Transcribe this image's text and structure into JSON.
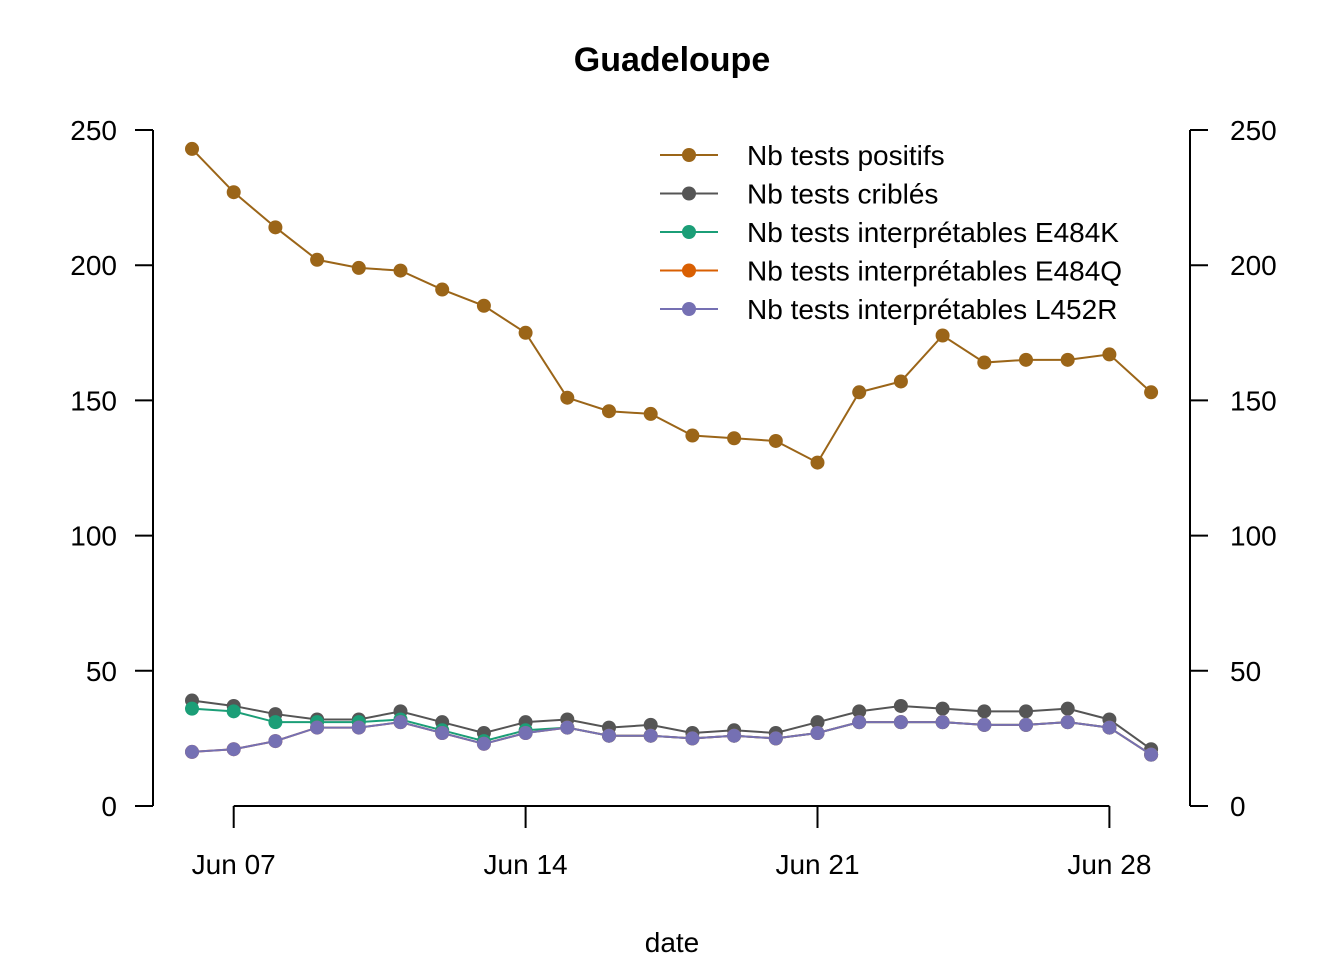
{
  "chart_data": {
    "type": "line",
    "title": "Guadeloupe",
    "xlabel": "date",
    "ylabel": "",
    "ylim": [
      0,
      250
    ],
    "yticks": [
      0,
      50,
      100,
      150,
      200,
      250
    ],
    "y2ticks": [
      0,
      50,
      100,
      150,
      200,
      250
    ],
    "x": [
      "2021-06-06",
      "2021-06-07",
      "2021-06-08",
      "2021-06-09",
      "2021-06-10",
      "2021-06-11",
      "2021-06-12",
      "2021-06-13",
      "2021-06-14",
      "2021-06-15",
      "2021-06-16",
      "2021-06-17",
      "2021-06-18",
      "2021-06-19",
      "2021-06-20",
      "2021-06-21",
      "2021-06-22",
      "2021-06-23",
      "2021-06-24",
      "2021-06-25",
      "2021-06-26",
      "2021-06-27",
      "2021-06-28",
      "2021-06-29"
    ],
    "xticks": [
      {
        "date": "2021-06-07",
        "label": "Jun 07"
      },
      {
        "date": "2021-06-14",
        "label": "Jun 14"
      },
      {
        "date": "2021-06-21",
        "label": "Jun 21"
      },
      {
        "date": "2021-06-28",
        "label": "Jun 28"
      }
    ],
    "legend_position": "top-right",
    "grid": false,
    "series": [
      {
        "name": "Nb tests positifs",
        "color": "#9B6518",
        "values": [
          243,
          227,
          214,
          202,
          199,
          198,
          191,
          185,
          175,
          151,
          146,
          145,
          137,
          136,
          135,
          127,
          153,
          157,
          174,
          164,
          165,
          165,
          167,
          153
        ]
      },
      {
        "name": "Nb tests criblés",
        "color": "#555555",
        "values": [
          39,
          37,
          34,
          32,
          32,
          35,
          31,
          27,
          31,
          32,
          29,
          30,
          27,
          28,
          27,
          31,
          35,
          37,
          36,
          35,
          35,
          36,
          32,
          21
        ]
      },
      {
        "name": "Nb tests interprétables E484K",
        "color": "#1B9E77",
        "values": [
          36,
          35,
          31,
          31,
          31,
          32,
          28,
          24,
          28,
          29,
          26,
          26,
          25,
          26,
          25,
          27,
          31,
          31,
          31,
          30,
          30,
          31,
          29,
          19
        ]
      },
      {
        "name": "Nb tests interprétables E484Q",
        "color": "#D95F02",
        "values": [
          20,
          21,
          24,
          29,
          29,
          31,
          27,
          23,
          27,
          29,
          26,
          26,
          25,
          26,
          25,
          27,
          31,
          31,
          31,
          30,
          30,
          31,
          29,
          19
        ]
      },
      {
        "name": "Nb tests interprétables L452R",
        "color": "#7570B3",
        "values": [
          20,
          21,
          24,
          29,
          29,
          31,
          27,
          23,
          27,
          29,
          26,
          26,
          25,
          26,
          25,
          27,
          31,
          31,
          31,
          30,
          30,
          31,
          29,
          19
        ]
      }
    ]
  }
}
